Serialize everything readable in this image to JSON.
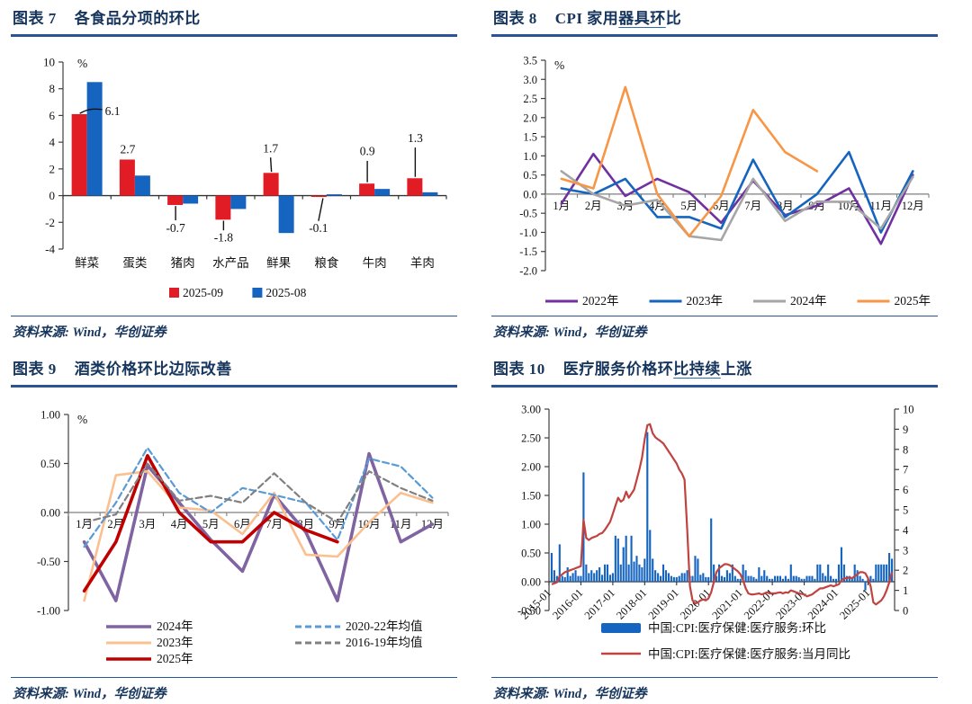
{
  "panels": [
    {
      "figure_label": "图表 7",
      "title_pre": "各食品分项的环比",
      "title_mid": "",
      "title_post": "",
      "source": "资料来源: Wind，华创证券"
    },
    {
      "figure_label": "图表 8",
      "title_pre": "CPI 家用",
      "title_mid": "器具环",
      "title_post": "比",
      "source": "资料来源: Wind，华创证券"
    },
    {
      "figure_label": "图表 9",
      "title_pre": "酒类价格环比边际改善",
      "title_mid": "",
      "title_post": "",
      "source": "资料来源: Wind，华创证券"
    },
    {
      "figure_label": "图表 10",
      "title_pre": "医疗服务价格环",
      "title_mid": "比持续",
      "title_post": "上涨",
      "source": "资料来源: Wind，华创证券"
    }
  ],
  "chart_data": [
    {
      "type": "bar",
      "title": "各食品分项的环比",
      "unit": "%",
      "ylim": [
        -4,
        10
      ],
      "ytick_step": 2,
      "grid": false,
      "legend_position": "bottom",
      "categories": [
        "鲜菜",
        "蛋类",
        "猪肉",
        "水产品",
        "鲜果",
        "粮食",
        "牛肉",
        "羊肉"
      ],
      "series": [
        {
          "name": "2025-09",
          "color": "#e11c25",
          "values": [
            6.1,
            2.7,
            -0.7,
            -1.8,
            1.7,
            -0.1,
            0.9,
            1.3
          ]
        },
        {
          "name": "2025-08",
          "color": "#1565c0",
          "values": [
            8.5,
            1.5,
            -0.6,
            -1.0,
            -2.8,
            0.1,
            0.5,
            0.25
          ]
        }
      ],
      "data_labels": [
        "6.1",
        "2.7",
        "-0.7",
        "-1.8",
        "1.7",
        "-0.1",
        "0.9",
        "1.3"
      ]
    },
    {
      "type": "line",
      "title": "CPI 家用器具环比",
      "unit": "%",
      "ylim": [
        -2.0,
        3.5
      ],
      "ytick_step": 0.5,
      "ytick_decimals": 1,
      "grid": false,
      "legend_position": "bottom",
      "categories": [
        "1月",
        "2月",
        "3月",
        "4月",
        "5月",
        "6月",
        "7月",
        "8月",
        "9月",
        "10月",
        "11月",
        "12月"
      ],
      "series": [
        {
          "name": "2022年",
          "color": "#7030a0",
          "width": 2.6,
          "values": [
            -0.25,
            1.05,
            -0.05,
            0.4,
            0.05,
            -0.75,
            0.35,
            -0.55,
            -0.3,
            0.15,
            -1.3,
            0.5
          ]
        },
        {
          "name": "2023年",
          "color": "#1565c0",
          "width": 2.6,
          "values": [
            0.15,
            0.0,
            0.4,
            -0.6,
            -0.6,
            -0.9,
            0.9,
            -0.6,
            0.0,
            1.1,
            -1.0,
            0.6
          ]
        },
        {
          "name": "2024年",
          "color": "#a6a6a6",
          "width": 2.6,
          "values": [
            0.6,
            0.0,
            -0.3,
            -0.15,
            -1.1,
            -1.2,
            0.4,
            -0.7,
            -0.2,
            -0.2,
            -0.9,
            0.45
          ]
        },
        {
          "name": "2025年",
          "color": "#f79646",
          "width": 2.6,
          "values": [
            0.4,
            0.15,
            2.8,
            0.0,
            -1.1,
            -0.05,
            2.2,
            1.1,
            0.6
          ]
        }
      ]
    },
    {
      "type": "line",
      "title": "酒类价格环比边际改善",
      "unit": "%",
      "ylim": [
        -1.0,
        1.0
      ],
      "ytick_step": 0.5,
      "ytick_decimals": 2,
      "grid": false,
      "legend_position": "bottom-two-columns",
      "categories": [
        "1月",
        "2月",
        "3月",
        "4月",
        "5月",
        "6月",
        "7月",
        "8月",
        "9月",
        "10月",
        "11月",
        "12月"
      ],
      "series": [
        {
          "name": "2024年",
          "color": "#8064a2",
          "width": 3.6,
          "values": [
            -0.3,
            -0.9,
            0.48,
            0.1,
            -0.28,
            -0.6,
            0.18,
            -0.2,
            -0.9,
            0.6,
            -0.3,
            -0.12
          ]
        },
        {
          "name": "2023年",
          "color": "#fac090",
          "width": 2.6,
          "values": [
            -0.9,
            0.38,
            0.42,
            0.05,
            0.02,
            -0.22,
            0.2,
            -0.43,
            -0.45,
            -0.1,
            0.2,
            0.1
          ]
        },
        {
          "name": "2025年",
          "color": "#c00000",
          "width": 3.6,
          "values": [
            -0.8,
            -0.3,
            0.58,
            0.0,
            -0.3,
            -0.3,
            0.0,
            -0.18,
            -0.3
          ]
        },
        {
          "name": "2020-22年均值",
          "color": "#5b9bd5",
          "width": 2.2,
          "dash": "7 4",
          "values": [
            -0.35,
            0.1,
            0.66,
            0.2,
            0.0,
            0.25,
            0.18,
            0.1,
            -0.28,
            0.55,
            0.47,
            0.15
          ]
        },
        {
          "name": "2016-19年均值",
          "color": "#808080",
          "width": 2.2,
          "dash": "7 4",
          "values": [
            -0.1,
            -0.02,
            0.5,
            0.12,
            0.17,
            0.1,
            0.4,
            0.1,
            -0.1,
            0.42,
            0.25,
            0.12
          ]
        }
      ]
    },
    {
      "type": "combo",
      "title": "医疗服务价格环比持续上涨",
      "left_ylim": [
        -0.5,
        3.0
      ],
      "left_step": 0.5,
      "left_decimals": 2,
      "right_ylim": [
        0,
        10
      ],
      "right_step": 1,
      "grid": false,
      "legend_position": "bottom",
      "x_labels": [
        "2015-01",
        "2016-01",
        "2017-01",
        "2018-01",
        "2019-01",
        "2020-01",
        "2021-01",
        "2022-01",
        "2023-01",
        "2024-01",
        "2025-01"
      ],
      "bar_series": {
        "name": "中国:CPI:医疗保健:医疗服务:环比",
        "color": "#1565c0",
        "values": [
          0.5,
          0.2,
          0.1,
          0.65,
          0.1,
          0.08,
          0.25,
          0.1,
          0.15,
          0.2,
          0.1,
          0.1,
          1.9,
          0.3,
          0.15,
          0.2,
          0.15,
          0.2,
          0.25,
          0.12,
          0.3,
          0.3,
          0.12,
          0.15,
          0.8,
          0.75,
          0.3,
          0.6,
          0.8,
          0.3,
          0.8,
          0.35,
          0.45,
          0.3,
          0.25,
          0.4,
          2.6,
          0.9,
          0.4,
          0.2,
          0.15,
          0.1,
          0.3,
          0.2,
          0.15,
          0.1,
          0.08,
          0.08,
          0.1,
          0.15,
          0.15,
          0.2,
          0.1,
          0.1,
          0.45,
          0.4,
          0.12,
          0.15,
          0.08,
          0.08,
          1.1,
          0.3,
          0.1,
          0.3,
          0.1,
          0.08,
          0.2,
          0.15,
          0.3,
          0.1,
          0.05,
          0.05,
          0.3,
          0.2,
          0.1,
          0.1,
          0.08,
          0.05,
          0.25,
          0.1,
          0.2,
          0.1,
          0.05,
          0.05,
          0.1,
          0.1,
          0.1,
          0.05,
          0.1,
          0.05,
          0.3,
          0.1,
          0.1,
          0.08,
          0.05,
          0.05,
          0.1,
          0.1,
          0.1,
          0.05,
          0.3,
          0.3,
          0.15,
          0.1,
          0.3,
          0.1,
          0.05,
          0.05,
          0.3,
          0.6,
          0.3,
          0.1,
          0.1,
          0.08,
          0.3,
          0.2,
          0.1,
          0.05,
          -0.15,
          0.05,
          0.1,
          0.05,
          0.3,
          0.3,
          0.3,
          0.3,
          0.3,
          0.5,
          0.4
        ]
      },
      "line_series": {
        "name": "中国:CPI:医疗保健:医疗服务:当月同比",
        "color": "#bf4340",
        "values": [
          1.3,
          1.35,
          1.4,
          1.7,
          1.8,
          1.9,
          1.95,
          2.0,
          2.05,
          2.1,
          2.15,
          2.2,
          4.5,
          3.6,
          3.5,
          3.6,
          3.65,
          3.7,
          3.8,
          3.85,
          4.0,
          4.2,
          4.4,
          4.8,
          5.2,
          5.6,
          5.4,
          5.5,
          5.9,
          5.6,
          5.8,
          6.0,
          6.5,
          7.0,
          7.6,
          8.5,
          9.2,
          9.25,
          8.8,
          8.6,
          8.5,
          8.4,
          8.3,
          8.1,
          7.9,
          7.7,
          7.5,
          7.3,
          7.0,
          6.8,
          6.5,
          4.0,
          1.2,
          0.5,
          0.35,
          0.4,
          0.5,
          0.55,
          0.5,
          0.6,
          0.9,
          1.4,
          1.9,
          2.1,
          2.2,
          2.3,
          2.3,
          2.25,
          2.15,
          2.05,
          1.95,
          1.8,
          1.5,
          1.1,
          0.85,
          0.8,
          0.8,
          0.82,
          0.85,
          0.8,
          0.85,
          0.9,
          0.85,
          0.85,
          0.85,
          0.88,
          0.9,
          0.85,
          0.9,
          0.88,
          1.0,
          0.95,
          0.9,
          0.85,
          0.82,
          0.8,
          0.7,
          0.75,
          0.8,
          0.9,
          1.0,
          1.1,
          1.1,
          1.15,
          1.2,
          1.25,
          1.2,
          1.25,
          1.3,
          1.5,
          1.6,
          1.6,
          1.65,
          1.6,
          1.7,
          1.8,
          1.9,
          1.9,
          1.85,
          1.6,
          1.2,
          0.4,
          0.3,
          0.4,
          0.5,
          0.7,
          1.0,
          1.4,
          1.9
        ]
      }
    }
  ]
}
